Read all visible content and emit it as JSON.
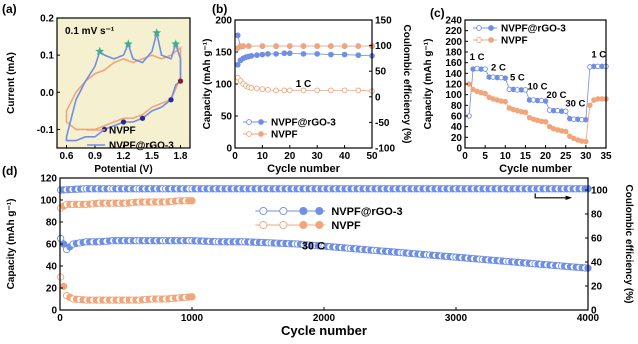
{
  "figure": {
    "panels": [
      "(a)",
      "(b)",
      "(c)",
      "(d)"
    ]
  },
  "colors": {
    "nvpf_rgo": "#6f8fe6",
    "nvpf_rgo_light": "#b6c8f3",
    "nvpf": "#f2a57a",
    "nvpf_light": "#f7cfb4",
    "cv_fill": "#f5f0d0",
    "star": "#3fae8c",
    "dot": "#8b1a2e",
    "dot_blue": "#2d2a8f"
  },
  "chart_data": [
    {
      "id": "a",
      "type": "line",
      "panel_label": "(a)",
      "annotation": "0.1 mV s⁻¹",
      "xlabel": "Potential (V)",
      "ylabel": "Current (mA)",
      "xlim": [
        0.5,
        1.9
      ],
      "ylim": [
        -0.15,
        0.2
      ],
      "xticks": [
        0.6,
        0.9,
        1.2,
        1.5,
        1.8
      ],
      "yticks": [
        -0.1,
        0.0,
        0.1,
        0.2
      ],
      "xtick_labels": [
        "0.6",
        "0.9",
        "1.2",
        "1.5",
        "1.8"
      ],
      "ytick_labels": [
        "-0.1",
        "0.0",
        "0.1",
        "0.2"
      ],
      "legend": [
        "NVPF",
        "NVPF@rGO-3"
      ],
      "series": [
        {
          "name": "NVPF",
          "color_key": "nvpf",
          "x": [
            0.6,
            0.7,
            0.8,
            0.9,
            1.0,
            1.1,
            1.2,
            1.3,
            1.4,
            1.5,
            1.6,
            1.7,
            1.8,
            1.8,
            1.7,
            1.6,
            1.5,
            1.4,
            1.3,
            1.2,
            1.1,
            1.0,
            0.9,
            0.8,
            0.7,
            0.6
          ],
          "y": [
            -0.05,
            0.0,
            0.03,
            0.05,
            0.06,
            0.08,
            0.09,
            0.08,
            0.09,
            0.1,
            0.09,
            0.1,
            0.12,
            0.04,
            -0.02,
            -0.03,
            -0.04,
            -0.06,
            -0.07,
            -0.07,
            -0.08,
            -0.09,
            -0.1,
            -0.1,
            -0.1,
            -0.08
          ]
        },
        {
          "name": "NVPF@rGO-3",
          "color_key": "nvpf_rgo",
          "x": [
            0.6,
            0.7,
            0.8,
            0.9,
            0.95,
            1.0,
            1.1,
            1.2,
            1.25,
            1.3,
            1.4,
            1.5,
            1.55,
            1.6,
            1.7,
            1.75,
            1.8,
            1.8,
            1.75,
            1.7,
            1.6,
            1.5,
            1.4,
            1.3,
            1.2,
            1.1,
            1.0,
            0.9,
            0.8,
            0.7,
            0.6
          ],
          "y": [
            -0.12,
            -0.02,
            0.03,
            0.07,
            0.11,
            0.1,
            0.09,
            0.1,
            0.13,
            0.09,
            0.08,
            0.11,
            0.16,
            0.1,
            0.09,
            0.13,
            0.09,
            0.03,
            0.02,
            -0.02,
            -0.04,
            -0.05,
            -0.07,
            -0.08,
            -0.08,
            -0.09,
            -0.1,
            -0.12,
            -0.12,
            -0.13,
            -0.13
          ]
        }
      ]
    },
    {
      "id": "b",
      "type": "scatter",
      "panel_label": "(b)",
      "annotation": "1 C",
      "xlabel": "Cycle number",
      "ylabel": "Capacity (mAh g⁻¹)",
      "y2label": "Coulombic efficiency (%)",
      "xlim": [
        0,
        50
      ],
      "ylim": [
        0,
        200
      ],
      "y2lim": [
        -100,
        150
      ],
      "xticks": [
        0,
        10,
        20,
        30,
        40,
        50
      ],
      "yticks": [
        0,
        50,
        100,
        150,
        200
      ],
      "y2ticks": [
        -100,
        -50,
        0,
        50,
        100,
        150
      ],
      "legend": [
        "NVPF@rGO-3",
        "NVPF"
      ],
      "series": [
        {
          "name": "NVPF@rGO-3",
          "color_key": "nvpf_rgo",
          "axis": "left",
          "x": [
            1,
            2,
            3,
            4,
            5,
            6,
            8,
            10,
            12,
            15,
            18,
            20,
            25,
            30,
            35,
            40,
            45,
            50
          ],
          "y": [
            130,
            137,
            140,
            142,
            143,
            144,
            145,
            146,
            147,
            147,
            148,
            148,
            147,
            147,
            146,
            146,
            145,
            144
          ]
        },
        {
          "name": "NVPF@rGO-3",
          "color_key": "nvpf_rgo",
          "axis": "right",
          "x": [
            1,
            2,
            3,
            5,
            10,
            15,
            20,
            25,
            30,
            35,
            40,
            45,
            50
          ],
          "y": [
            120,
            98,
            99,
            99,
            99,
            99,
            99,
            99,
            99,
            99,
            99,
            99,
            99
          ]
        },
        {
          "name": "NVPF",
          "color_key": "nvpf",
          "axis": "left",
          "x": [
            1,
            2,
            3,
            4,
            5,
            6,
            8,
            10,
            12,
            15,
            18,
            20,
            25,
            30,
            35,
            40,
            45,
            50
          ],
          "y": [
            110,
            105,
            100,
            97,
            95,
            94,
            93,
            92,
            91,
            90,
            90,
            90,
            90,
            90,
            90,
            90,
            90,
            89
          ]
        },
        {
          "name": "NVPF",
          "color_key": "nvpf",
          "axis": "right",
          "x": [
            1,
            2,
            3,
            5,
            10,
            15,
            20,
            25,
            30,
            35,
            40,
            45,
            50
          ],
          "y": [
            95,
            99,
            99,
            99,
            99,
            99,
            99,
            99,
            99,
            99,
            99,
            99,
            99
          ]
        }
      ]
    },
    {
      "id": "c",
      "type": "scatter",
      "panel_label": "(c)",
      "xlabel": "Cycle number",
      "ylabel": "Capacity (mAh g⁻¹)",
      "xlim": [
        0,
        35
      ],
      "ylim": [
        0,
        240
      ],
      "xticks": [
        0,
        5,
        10,
        15,
        20,
        25,
        30,
        35
      ],
      "yticks": [
        0,
        20,
        40,
        60,
        80,
        100,
        120,
        140,
        160,
        180,
        200,
        220,
        240
      ],
      "legend": [
        "NVPF@rGO-3",
        "NVPF"
      ],
      "rate_labels": [
        {
          "text": "1 C",
          "x": 3,
          "y": 165
        },
        {
          "text": "2 C",
          "x": 8.3,
          "y": 145
        },
        {
          "text": "5 C",
          "x": 13,
          "y": 127
        },
        {
          "text": "10 C",
          "x": 18,
          "y": 110
        },
        {
          "text": "20 C",
          "x": 22.7,
          "y": 94
        },
        {
          "text": "30 C",
          "x": 27.4,
          "y": 78
        },
        {
          "text": "1 C",
          "x": 33.2,
          "y": 170
        }
      ],
      "series": [
        {
          "name": "NVPF@rGO-3",
          "color_key": "nvpf_rgo",
          "x": [
            1,
            2,
            3,
            4,
            5,
            6,
            7,
            8,
            9,
            10,
            11,
            12,
            13,
            14,
            15,
            16,
            17,
            18,
            19,
            20,
            21,
            22,
            23,
            24,
            25,
            26,
            27,
            28,
            29,
            30,
            31,
            32,
            33,
            34,
            35
          ],
          "y": [
            60,
            148,
            149,
            148,
            148,
            133,
            133,
            132,
            132,
            131,
            110,
            110,
            109,
            109,
            109,
            90,
            90,
            89,
            89,
            88,
            71,
            70,
            70,
            69,
            69,
            55,
            54,
            54,
            53,
            53,
            152,
            153,
            153,
            153,
            153
          ]
        },
        {
          "name": "NVPF",
          "color_key": "nvpf",
          "x": [
            1,
            2,
            3,
            4,
            5,
            6,
            7,
            8,
            9,
            10,
            11,
            12,
            13,
            14,
            15,
            16,
            17,
            18,
            19,
            20,
            21,
            22,
            23,
            24,
            25,
            26,
            27,
            28,
            29,
            30,
            31,
            32,
            33,
            34,
            35
          ],
          "y": [
            120,
            110,
            106,
            104,
            102,
            95,
            92,
            90,
            88,
            87,
            75,
            72,
            70,
            68,
            67,
            57,
            54,
            52,
            50,
            49,
            40,
            36,
            34,
            32,
            31,
            22,
            18,
            15,
            13,
            12,
            80,
            90,
            92,
            92,
            92
          ]
        }
      ]
    },
    {
      "id": "d",
      "type": "scatter",
      "panel_label": "(d)",
      "annotation": "30 C",
      "xlabel": "Cycle number",
      "ylabel": "Capacity (mAh g⁻¹)",
      "y2label": "Coulombic efficiency (%)",
      "xlim": [
        0,
        4000
      ],
      "ylim": [
        0,
        120
      ],
      "y2lim": [
        0,
        110
      ],
      "xticks": [
        0,
        1000,
        2000,
        3000,
        4000
      ],
      "yticks": [
        0,
        20,
        40,
        60,
        80,
        100,
        120
      ],
      "y2ticks": [
        0,
        20,
        40,
        60,
        80,
        100
      ],
      "legend": [
        "NVPF@rGO-3",
        "NVPF"
      ],
      "series": [
        {
          "name": "NVPF@rGO-3",
          "color_key": "nvpf_rgo",
          "axis": "left",
          "x": [
            5,
            50,
            100,
            200,
            300,
            400,
            600,
            800,
            1000,
            1200,
            1400,
            1600,
            1800,
            2000,
            2200,
            2400,
            2600,
            2800,
            3000,
            3200,
            3400,
            3600,
            3800,
            4000
          ],
          "y": [
            65,
            55,
            60,
            62,
            62,
            63,
            63,
            63,
            63,
            62,
            62,
            61,
            60,
            58,
            56,
            54,
            52,
            50,
            48,
            46,
            44,
            42,
            40,
            38
          ]
        },
        {
          "name": "NVPF@rGO-3",
          "color_key": "nvpf_rgo",
          "axis": "right",
          "x": [
            5,
            200,
            400,
            600,
            800,
            1000,
            1500,
            2000,
            2500,
            3000,
            3500,
            4000
          ],
          "y": [
            100,
            101,
            101,
            101,
            101,
            101,
            101,
            101,
            101,
            101,
            101,
            101
          ]
        },
        {
          "name": "NVPF",
          "color_key": "nvpf",
          "axis": "left",
          "x": [
            5,
            50,
            100,
            200,
            300,
            400,
            500,
            600,
            700,
            800,
            900,
            1000
          ],
          "y": [
            30,
            13,
            10,
            9,
            9,
            9,
            9,
            9,
            10,
            10,
            11,
            12
          ]
        },
        {
          "name": "NVPF",
          "color_key": "nvpf",
          "axis": "right",
          "x": [
            5,
            50,
            100,
            200,
            300,
            400,
            500,
            600,
            700,
            800,
            900,
            1000
          ],
          "y": [
            85,
            88,
            88,
            88,
            89,
            89,
            89,
            90,
            90,
            90,
            91,
            91
          ]
        }
      ]
    }
  ]
}
